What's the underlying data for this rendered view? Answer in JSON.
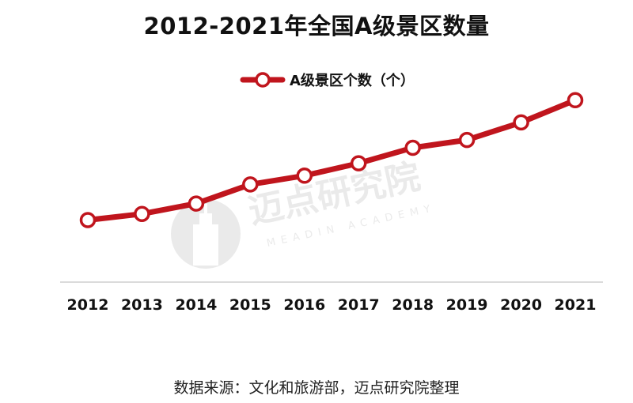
{
  "colors": {
    "series": "#c0151d",
    "axis": "#cfcfcf",
    "watermark": "#d9d9d9"
  },
  "source_note": "数据来源：文化和旅游部，迈点研究院整理",
  "watermark": {
    "cn": "迈点研究院",
    "en": "MEADIN ACADEMY",
    "icon": "meadin-logo-icon"
  },
  "chart_data": {
    "type": "line",
    "title": "2012-2021年全国A级景区数量",
    "xlabel": "",
    "ylabel": "",
    "categories": [
      "2012",
      "2013",
      "2014",
      "2015",
      "2016",
      "2017",
      "2018",
      "2019",
      "2020",
      "2021"
    ],
    "series": [
      {
        "name": "A级景区个数（个）",
        "values": [
          6000,
          6600,
          7600,
          9450,
          10300,
          11500,
          13000,
          13750,
          15450,
          17600
        ]
      }
    ],
    "ylim": [
      0,
      25000
    ],
    "grid": false,
    "legend": "top-center",
    "markers": "hollow-circle"
  }
}
